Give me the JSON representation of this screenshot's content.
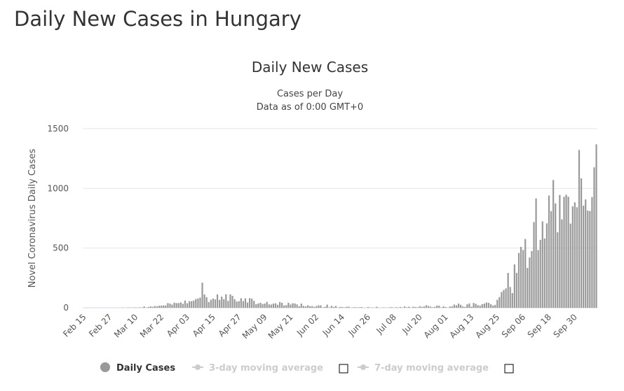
{
  "header": {
    "title": "Daily New Cases in Hungary"
  },
  "chart_data": {
    "type": "bar",
    "title": "Daily New Cases",
    "subtitle": [
      "Cases per Day",
      "Data as of 0:00 GMT+0"
    ],
    "y_label": "Novel Coronavirus Daily Cases",
    "categories": [
      "Feb 15",
      null,
      null,
      null,
      null,
      null,
      null,
      null,
      null,
      null,
      null,
      null,
      "Feb 27",
      null,
      null,
      null,
      null,
      null,
      null,
      null,
      null,
      null,
      null,
      null,
      "Mar 10",
      null,
      null,
      null,
      null,
      null,
      null,
      null,
      null,
      null,
      null,
      null,
      "Mar 22",
      null,
      null,
      null,
      null,
      null,
      null,
      null,
      null,
      null,
      null,
      null,
      "Apr 03",
      null,
      null,
      null,
      null,
      null,
      null,
      null,
      null,
      null,
      null,
      null,
      "Apr 15",
      null,
      null,
      null,
      null,
      null,
      null,
      null,
      null,
      null,
      null,
      null,
      "Apr 27",
      null,
      null,
      null,
      null,
      null,
      null,
      null,
      null,
      null,
      null,
      null,
      "May 09",
      null,
      null,
      null,
      null,
      null,
      null,
      null,
      null,
      null,
      null,
      null,
      "May 21",
      null,
      null,
      null,
      null,
      null,
      null,
      null,
      null,
      null,
      null,
      null,
      "Jun 02",
      null,
      null,
      null,
      null,
      null,
      null,
      null,
      null,
      null,
      null,
      null,
      "Jun 14",
      null,
      null,
      null,
      null,
      null,
      null,
      null,
      null,
      null,
      null,
      null,
      "Jun 26",
      null,
      null,
      null,
      null,
      null,
      null,
      null,
      null,
      null,
      null,
      null,
      "Jul 08",
      null,
      null,
      null,
      null,
      null,
      null,
      null,
      null,
      null,
      null,
      null,
      "Jul 20",
      null,
      null,
      null,
      null,
      null,
      null,
      null,
      null,
      null,
      null,
      null,
      "Aug 01",
      null,
      null,
      null,
      null,
      null,
      null,
      null,
      null,
      null,
      null,
      null,
      "Aug 13",
      null,
      null,
      null,
      null,
      null,
      null,
      null,
      null,
      null,
      null,
      null,
      "Aug 25",
      null,
      null,
      null,
      null,
      null,
      null,
      null,
      null,
      null,
      null,
      null,
      "Sep 06",
      null,
      null,
      null,
      null,
      null,
      null,
      null,
      null,
      null,
      null,
      null,
      "Sep 18",
      null,
      null,
      null,
      null,
      null,
      null,
      null,
      null,
      null,
      null,
      null,
      "Sep 30",
      null,
      null,
      null,
      null,
      null,
      null,
      null,
      null,
      null,
      null
    ],
    "series": [
      {
        "name": "Daily Cases",
        "color": "#999999",
        "visible": true,
        "values": [
          0,
          0,
          0,
          0,
          0,
          0,
          0,
          0,
          0,
          0,
          0,
          0,
          0,
          0,
          0,
          0,
          0,
          0,
          2,
          0,
          1,
          2,
          2,
          2,
          3,
          1,
          3,
          3,
          11,
          2,
          7,
          11,
          8,
          15,
          12,
          18,
          18,
          20,
          19,
          39,
          35,
          26,
          43,
          39,
          39,
          45,
          33,
          60,
          38,
          55,
          55,
          60,
          73,
          78,
          85,
          210,
          111,
          88,
          48,
          67,
          77,
          70,
          112,
          66,
          93,
          72,
          113,
          57,
          112,
          100,
          72,
          52,
          55,
          80,
          56,
          79,
          44,
          80,
          76,
          58,
          30,
          36,
          42,
          31,
          35,
          49,
          28,
          27,
          35,
          37,
          25,
          48,
          41,
          19,
          22,
          42,
          27,
          38,
          36,
          28,
          12,
          35,
          15,
          11,
          21,
          13,
          14,
          7,
          14,
          20,
          20,
          3,
          8,
          26,
          3,
          16,
          7,
          15,
          2,
          7,
          6,
          3,
          8,
          9,
          1,
          3,
          5,
          3,
          4,
          6,
          0,
          1,
          6,
          2,
          2,
          1,
          8,
          2,
          0,
          3,
          2,
          0,
          4,
          5,
          0,
          5,
          3,
          6,
          2,
          11,
          3,
          9,
          1,
          9,
          6,
          4,
          13,
          7,
          11,
          21,
          15,
          9,
          4,
          8,
          18,
          17,
          3,
          12,
          6,
          0,
          10,
          12,
          27,
          20,
          35,
          25,
          11,
          7,
          28,
          36,
          9,
          40,
          33,
          22,
          17,
          30,
          35,
          44,
          41,
          30,
          19,
          24,
          67,
          90,
          132,
          149,
          162,
          292,
          174,
          123,
          363,
          292,
          459,
          510,
          484,
          576,
          334,
          421,
          475,
          718,
          916,
          483,
          569,
          724,
          580,
          707,
          940,
          810,
          1070,
          874,
          632,
          945,
          741,
          930,
          947,
          930,
          705,
          849,
          883,
          842,
          1322,
          1084,
          855,
          907,
          814,
          810,
          927,
          1176,
          1369
        ]
      },
      {
        "name": "3-day moving average",
        "color": "#cccccc",
        "visible": false
      },
      {
        "name": "7-day moving average",
        "color": "#cccccc",
        "visible": false
      }
    ],
    "ylim": [
      0,
      1500
    ],
    "yticks": [
      0,
      500,
      1000,
      1500
    ],
    "grid": true
  }
}
